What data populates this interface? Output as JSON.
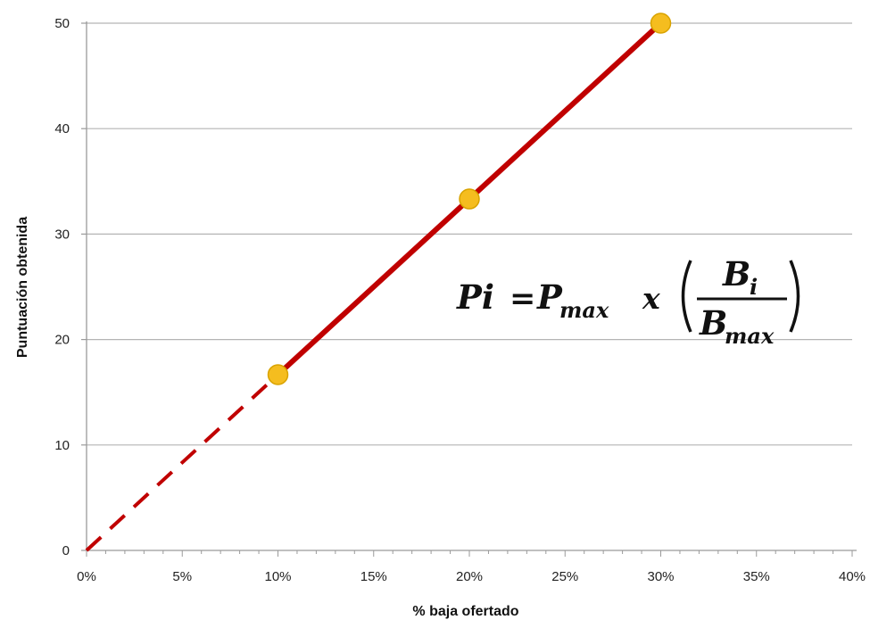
{
  "chart_data": {
    "type": "line",
    "xlabel": "% baja ofertado",
    "ylabel": "Puntuación obtenida",
    "xlim": [
      0,
      40
    ],
    "ylim": [
      0,
      50
    ],
    "x_ticks": [
      0,
      5,
      10,
      15,
      20,
      25,
      30,
      35,
      40
    ],
    "x_tick_labels": [
      "0%",
      "5%",
      "10%",
      "15%",
      "20%",
      "25%",
      "30%",
      "35%",
      "40%"
    ],
    "y_ticks": [
      0,
      10,
      20,
      30,
      40,
      50
    ],
    "y_tick_labels": [
      "0",
      "10",
      "20",
      "30",
      "40",
      "50"
    ],
    "grid": "horizontal",
    "series": [
      {
        "style": "dashed",
        "color": "#c00000",
        "x": [
          0,
          10
        ],
        "y": [
          0,
          16.67
        ]
      },
      {
        "style": "solid",
        "color": "#c00000",
        "x": [
          10,
          20,
          30
        ],
        "y": [
          16.67,
          33.33,
          50
        ]
      }
    ],
    "points": {
      "color": "#f5bd1f",
      "edge_color": "#d9a300",
      "x": [
        10,
        20,
        30
      ],
      "y": [
        16.67,
        33.33,
        50
      ]
    },
    "annotation": {
      "formula": {
        "lhs": "Pi",
        "equals": "=",
        "p": "P",
        "p_sub": "max",
        "times": "x",
        "numerator": "B",
        "numerator_sub": "i",
        "denominator": "B",
        "denominator_sub": "max"
      }
    }
  }
}
